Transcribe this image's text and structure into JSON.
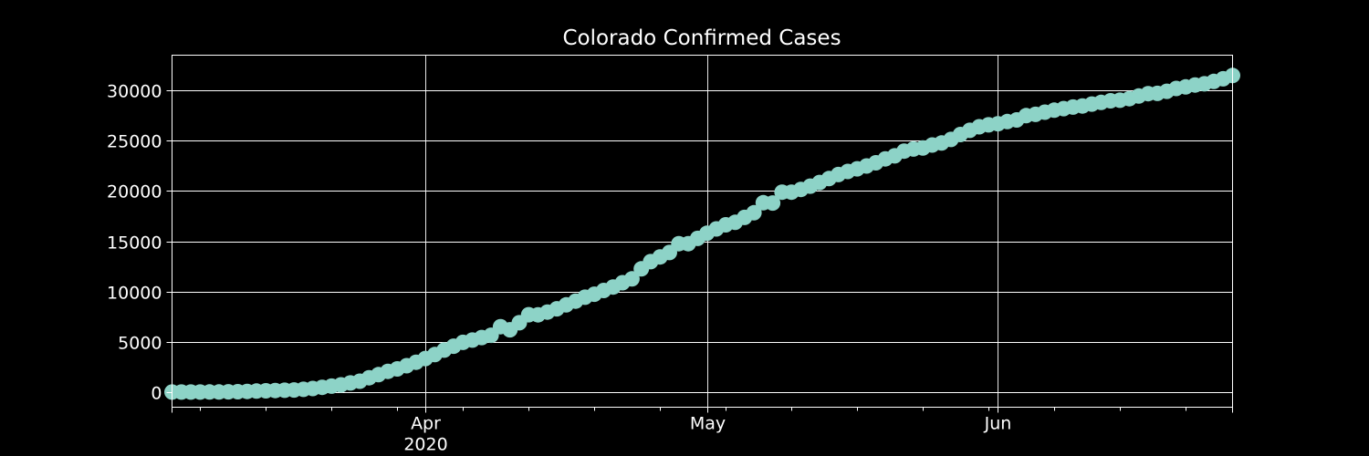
{
  "chart_data": {
    "type": "line",
    "title": "Colorado Confirmed Cases",
    "xlabel": "",
    "ylabel": "",
    "x_range": [
      "2020-03-05",
      "2020-06-26"
    ],
    "ylim": [
      -1500,
      33500
    ],
    "grid": true,
    "legend": "none",
    "x_ticks": [
      {
        "date": "2020-04-01",
        "label": "Apr",
        "sublabel": "2020"
      },
      {
        "date": "2020-05-01",
        "label": "May",
        "sublabel": ""
      },
      {
        "date": "2020-06-01",
        "label": "Jun",
        "sublabel": ""
      }
    ],
    "y_ticks": [
      0,
      5000,
      10000,
      15000,
      20000,
      25000,
      30000
    ],
    "series": [
      {
        "marker": "circle",
        "color": "#8dd3c7",
        "x": [
          "2020-03-05",
          "2020-03-06",
          "2020-03-07",
          "2020-03-08",
          "2020-03-09",
          "2020-03-10",
          "2020-03-11",
          "2020-03-12",
          "2020-03-13",
          "2020-03-14",
          "2020-03-15",
          "2020-03-16",
          "2020-03-17",
          "2020-03-18",
          "2020-03-19",
          "2020-03-20",
          "2020-03-21",
          "2020-03-22",
          "2020-03-23",
          "2020-03-24",
          "2020-03-25",
          "2020-03-26",
          "2020-03-27",
          "2020-03-28",
          "2020-03-29",
          "2020-03-30",
          "2020-03-31",
          "2020-04-01",
          "2020-04-02",
          "2020-04-03",
          "2020-04-04",
          "2020-04-05",
          "2020-04-06",
          "2020-04-07",
          "2020-04-08",
          "2020-04-09",
          "2020-04-10",
          "2020-04-11",
          "2020-04-12",
          "2020-04-13",
          "2020-04-14",
          "2020-04-15",
          "2020-04-16",
          "2020-04-17",
          "2020-04-18",
          "2020-04-19",
          "2020-04-20",
          "2020-04-21",
          "2020-04-22",
          "2020-04-23",
          "2020-04-24",
          "2020-04-25",
          "2020-04-26",
          "2020-04-27",
          "2020-04-28",
          "2020-04-29",
          "2020-04-30",
          "2020-05-01",
          "2020-05-02",
          "2020-05-03",
          "2020-05-04",
          "2020-05-05",
          "2020-05-06",
          "2020-05-07",
          "2020-05-08",
          "2020-05-09",
          "2020-05-10",
          "2020-05-11",
          "2020-05-12",
          "2020-05-13",
          "2020-05-14",
          "2020-05-15",
          "2020-05-16",
          "2020-05-17",
          "2020-05-18",
          "2020-05-19",
          "2020-05-20",
          "2020-05-21",
          "2020-05-22",
          "2020-05-23",
          "2020-05-24",
          "2020-05-25",
          "2020-05-26",
          "2020-05-27",
          "2020-05-28",
          "2020-05-29",
          "2020-05-30",
          "2020-05-31",
          "2020-06-01",
          "2020-06-02",
          "2020-06-03",
          "2020-06-04",
          "2020-06-05",
          "2020-06-06",
          "2020-06-07",
          "2020-06-08",
          "2020-06-09",
          "2020-06-10",
          "2020-06-11",
          "2020-06-12",
          "2020-06-13",
          "2020-06-14",
          "2020-06-15",
          "2020-06-16",
          "2020-06-17",
          "2020-06-18",
          "2020-06-19",
          "2020-06-20",
          "2020-06-21",
          "2020-06-22",
          "2020-06-23",
          "2020-06-24",
          "2020-06-25",
          "2020-06-26"
        ],
        "y": [
          2,
          4,
          8,
          8,
          15,
          17,
          34,
          45,
          72,
          101,
          131,
          160,
          183,
          216,
          277,
          363,
          475,
          591,
          720,
          912,
          1086,
          1430,
          1734,
          2061,
          2311,
          2627,
          2966,
          3342,
          3728,
          4173,
          4565,
          4950,
          5172,
          5429,
          5655,
          6510,
          6202,
          6893,
          7691,
          7689,
          7956,
          8280,
          8675,
          9047,
          9433,
          9730,
          10106,
          10447,
          10878,
          11262,
          12256,
          12968,
          13441,
          13879,
          14758,
          14758,
          15284,
          15793,
          16225,
          16635,
          16878,
          17367,
          17830,
          18827,
          18801,
          19879,
          19879,
          20157,
          20475,
          20838,
          21232,
          21633,
          21938,
          22202,
          22482,
          22797,
          23191,
          23487,
          23964,
          24174,
          24269,
          24565,
          24767,
          25121,
          25613,
          26032,
          26378,
          26577,
          26685,
          26903,
          27060,
          27484,
          27615,
          27834,
          28036,
          28183,
          28338,
          28447,
          28642,
          28807,
          28967,
          29017,
          29179,
          29442,
          29673,
          29701,
          29911,
          30187,
          30349,
          30539,
          30657,
          30893,
          31155,
          31479
        ]
      }
    ]
  }
}
